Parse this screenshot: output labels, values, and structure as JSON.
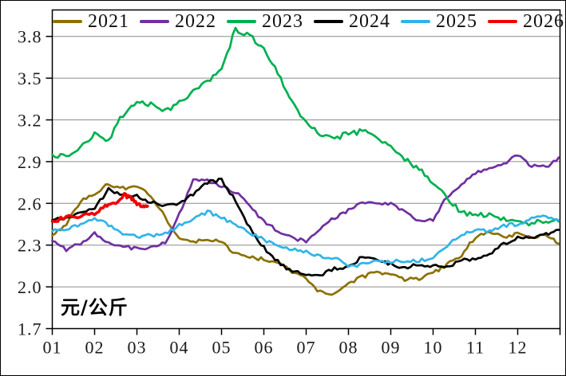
{
  "chart_data": {
    "type": "line",
    "title": "",
    "xlabel": "",
    "ylabel": "",
    "unit_label": "元/公斤",
    "grid": true,
    "legend_position": "top-inside",
    "x_axis": {
      "tick_labels": [
        "01",
        "02",
        "03",
        "04",
        "05",
        "06",
        "07",
        "08",
        "09",
        "10",
        "11",
        "12"
      ],
      "range_months": [
        1,
        13
      ]
    },
    "y_axis": {
      "tick_labels": [
        "1.7",
        "2.0",
        "2.3",
        "2.6",
        "2.9",
        "3.2",
        "3.5",
        "3.8"
      ],
      "ticks": [
        1.7,
        2.0,
        2.3,
        2.6,
        2.9,
        3.2,
        3.5,
        3.8
      ],
      "min": 1.7,
      "max": 3.99
    },
    "colors": {
      "grid": "#8c8c8c",
      "frame": "#000000"
    },
    "series": [
      {
        "name": "2021",
        "color": "#8c7100",
        "x": [
          1,
          1.33,
          1.67,
          2,
          2.33,
          2.67,
          3,
          3.33,
          3.67,
          4,
          4.33,
          4.67,
          5,
          5.33,
          5.67,
          6,
          6.33,
          6.67,
          7,
          7.33,
          7.67,
          8,
          8.33,
          8.67,
          9,
          9.33,
          9.67,
          10,
          10.33,
          10.67,
          11,
          11.33,
          11.67,
          12,
          12.33,
          12.67,
          12.97
        ],
        "values": [
          2.37,
          2.45,
          2.62,
          2.67,
          2.74,
          2.71,
          2.72,
          2.66,
          2.5,
          2.34,
          2.32,
          2.34,
          2.32,
          2.24,
          2.21,
          2.2,
          2.17,
          2.11,
          2.06,
          1.96,
          1.95,
          2.03,
          2.07,
          2.11,
          2.09,
          2.05,
          2.06,
          2.1,
          2.16,
          2.23,
          2.36,
          2.4,
          2.35,
          2.38,
          2.35,
          2.38,
          2.31
        ]
      },
      {
        "name": "2022",
        "color": "#7030a0",
        "x": [
          1,
          1.33,
          1.67,
          2,
          2.33,
          2.67,
          3,
          3.33,
          3.67,
          4,
          4.33,
          4.67,
          5,
          5.33,
          5.67,
          6,
          6.33,
          6.67,
          7,
          7.33,
          7.67,
          8,
          8.33,
          8.67,
          9,
          9.33,
          9.67,
          10,
          10.33,
          10.67,
          11,
          11.33,
          11.67,
          12,
          12.33,
          12.67,
          12.97
        ],
        "values": [
          2.33,
          2.27,
          2.31,
          2.38,
          2.31,
          2.29,
          2.27,
          2.29,
          2.31,
          2.52,
          2.78,
          2.76,
          2.73,
          2.68,
          2.58,
          2.47,
          2.4,
          2.35,
          2.33,
          2.42,
          2.5,
          2.55,
          2.6,
          2.6,
          2.6,
          2.54,
          2.47,
          2.48,
          2.65,
          2.74,
          2.82,
          2.85,
          2.88,
          2.95,
          2.87,
          2.86,
          2.93
        ]
      },
      {
        "name": "2023",
        "color": "#00b050",
        "x": [
          1,
          1.33,
          1.67,
          2,
          2.33,
          2.67,
          3,
          3.33,
          3.67,
          4,
          4.33,
          4.67,
          5,
          5.33,
          5.67,
          6,
          6.33,
          6.67,
          7,
          7.33,
          7.67,
          8,
          8.33,
          8.67,
          9,
          9.33,
          9.67,
          10,
          10.33,
          10.67,
          11,
          11.33,
          11.67,
          12,
          12.33,
          12.67,
          12.97
        ],
        "values": [
          2.95,
          2.93,
          3.01,
          3.1,
          3.06,
          3.24,
          3.33,
          3.31,
          3.27,
          3.32,
          3.41,
          3.48,
          3.57,
          3.85,
          3.8,
          3.72,
          3.54,
          3.33,
          3.18,
          3.09,
          3.07,
          3.1,
          3.12,
          3.07,
          3.0,
          2.92,
          2.84,
          2.76,
          2.64,
          2.53,
          2.53,
          2.51,
          2.49,
          2.47,
          2.45,
          2.48,
          2.47
        ]
      },
      {
        "name": "2024",
        "color": "#000000",
        "x": [
          1,
          1.33,
          1.67,
          2,
          2.33,
          2.67,
          3,
          3.33,
          3.67,
          4,
          4.33,
          4.67,
          5,
          5.33,
          5.67,
          6,
          6.33,
          6.67,
          7,
          7.33,
          7.67,
          8,
          8.33,
          8.67,
          9,
          9.33,
          9.67,
          10,
          10.33,
          10.67,
          11,
          11.33,
          11.67,
          12,
          12.33,
          12.67,
          12.97
        ],
        "values": [
          2.48,
          2.5,
          2.53,
          2.56,
          2.7,
          2.66,
          2.65,
          2.61,
          2.58,
          2.59,
          2.67,
          2.75,
          2.77,
          2.62,
          2.42,
          2.28,
          2.18,
          2.11,
          2.09,
          2.08,
          2.13,
          2.14,
          2.22,
          2.19,
          2.16,
          2.14,
          2.16,
          2.15,
          2.14,
          2.2,
          2.2,
          2.24,
          2.31,
          2.35,
          2.36,
          2.38,
          2.41
        ]
      },
      {
        "name": "2025",
        "color": "#30b4e8",
        "x": [
          1,
          1.33,
          1.67,
          2,
          2.33,
          2.67,
          3,
          3.33,
          3.67,
          4,
          4.33,
          4.67,
          5,
          5.33,
          5.67,
          6,
          6.33,
          6.67,
          7,
          7.33,
          7.67,
          8,
          8.33,
          8.67,
          9,
          9.33,
          9.67,
          10,
          10.33,
          10.67,
          11,
          11.33,
          11.67,
          12,
          12.33,
          12.67,
          12.97
        ],
        "values": [
          2.4,
          2.42,
          2.44,
          2.5,
          2.44,
          2.38,
          2.36,
          2.37,
          2.38,
          2.44,
          2.49,
          2.54,
          2.5,
          2.44,
          2.39,
          2.34,
          2.29,
          2.27,
          2.25,
          2.22,
          2.21,
          2.15,
          2.16,
          2.18,
          2.18,
          2.19,
          2.19,
          2.21,
          2.3,
          2.37,
          2.41,
          2.4,
          2.44,
          2.45,
          2.49,
          2.51,
          2.48
        ]
      },
      {
        "name": "2026",
        "color": "#f00000",
        "x": [
          1,
          1.33,
          1.67,
          2,
          2.25,
          2.45,
          2.7,
          2.85,
          3,
          3.15,
          3.25
        ],
        "values": [
          2.47,
          2.5,
          2.51,
          2.53,
          2.58,
          2.59,
          2.66,
          2.64,
          2.6,
          2.57,
          2.58
        ]
      }
    ]
  }
}
